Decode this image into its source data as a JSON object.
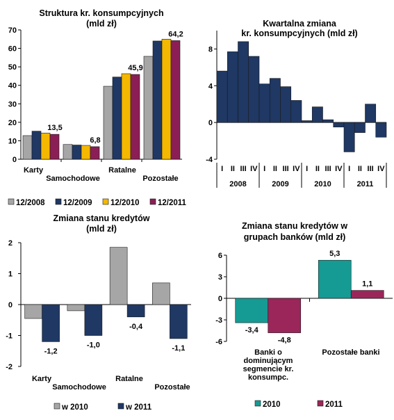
{
  "chart_data": [
    {
      "id": "c1",
      "type": "bar",
      "title": "Struktura kr. konsumpcyjnych",
      "subtitle": "(mld zł)",
      "categories": [
        "Karty",
        "Samochodowe",
        "Ratalne",
        "Pozostałe"
      ],
      "series": [
        {
          "name": "12/2008",
          "color": "#a6a6a6",
          "values": [
            12.8,
            8.0,
            39.5,
            55.7
          ]
        },
        {
          "name": "12/2009",
          "color": "#1f3864",
          "values": [
            15.2,
            7.7,
            44.5,
            64.0
          ]
        },
        {
          "name": "12/2010",
          "color": "#f5b800",
          "values": [
            14.2,
            7.5,
            46.3,
            65.0
          ]
        },
        {
          "name": "12/2011",
          "color": "#8b1f55",
          "values": [
            13.5,
            6.8,
            45.9,
            64.2
          ]
        }
      ],
      "data_labels": [
        "13,5",
        "6,8",
        "45,9",
        "64,2"
      ],
      "yticks": [
        "70",
        "60",
        "50",
        "40",
        "30",
        "20",
        "10",
        "0"
      ],
      "ylim": [
        0,
        70
      ],
      "legend_position": "bottom"
    },
    {
      "id": "c2",
      "type": "bar",
      "title": "Kwartalna zmiana",
      "subtitle": "kr. konsumpcyjnych (mld zł)",
      "color": "#1f3864",
      "quarter_labels": [
        "I",
        "II",
        "III",
        "IV",
        "I",
        "II",
        "III",
        "IV",
        "I",
        "II",
        "III",
        "IV",
        "I",
        "II",
        "III",
        "IV"
      ],
      "years": [
        "2008",
        "2009",
        "2010",
        "2011"
      ],
      "values": [
        5.6,
        7.7,
        8.8,
        7.2,
        4.2,
        4.8,
        3.9,
        2.4,
        0.2,
        1.7,
        0.3,
        -0.5,
        -3.2,
        -1.1,
        2.0,
        -1.6
      ],
      "yticks": [
        "8",
        "4",
        "0",
        "-4"
      ],
      "ylim": [
        -4,
        10
      ]
    },
    {
      "id": "c3",
      "type": "bar",
      "title": "Zmiana stanu kredytów",
      "subtitle": "(mld zł)",
      "categories": [
        "Karty",
        "Samochodowe",
        "Ratalne",
        "Pozostałe"
      ],
      "series": [
        {
          "name": "w 2010",
          "color": "#a6a6a6",
          "values": [
            -0.45,
            -0.2,
            1.85,
            0.7
          ]
        },
        {
          "name": "w 2011",
          "color": "#1f3864",
          "values": [
            -1.2,
            -1.0,
            -0.4,
            -1.1
          ]
        }
      ],
      "data_labels": [
        "-1,2",
        "-1,0",
        "-0,4",
        "-1,1"
      ],
      "yticks": [
        "2",
        "1",
        "0",
        "-1",
        "-2"
      ],
      "ylim": [
        -2,
        2
      ],
      "legend_position": "bottom"
    },
    {
      "id": "c4",
      "type": "bar",
      "title": "Zmiana stanu kredytów w",
      "subtitle": "grupach banków (mld zł)",
      "categories": [
        "Banki o dominującym segmencie kr. konsumpc.",
        "Pozostałe banki"
      ],
      "category_lines": [
        [
          "Banki o",
          "dominującym",
          "segmencie kr.",
          "konsumpc."
        ],
        [
          "Pozostałe banki"
        ]
      ],
      "series": [
        {
          "name": "2010",
          "color": "#169a94",
          "values": [
            -3.4,
            5.3
          ]
        },
        {
          "name": "2011",
          "color": "#9b2659",
          "values": [
            -4.8,
            1.1
          ]
        }
      ],
      "data_labels": [
        [
          "-3,4",
          "5,3"
        ],
        [
          "-4,8",
          "1,1"
        ]
      ],
      "yticks": [
        "6",
        "3",
        "0",
        "-3",
        "-6"
      ],
      "ylim": [
        -6,
        6
      ],
      "legend_position": "bottom"
    }
  ]
}
